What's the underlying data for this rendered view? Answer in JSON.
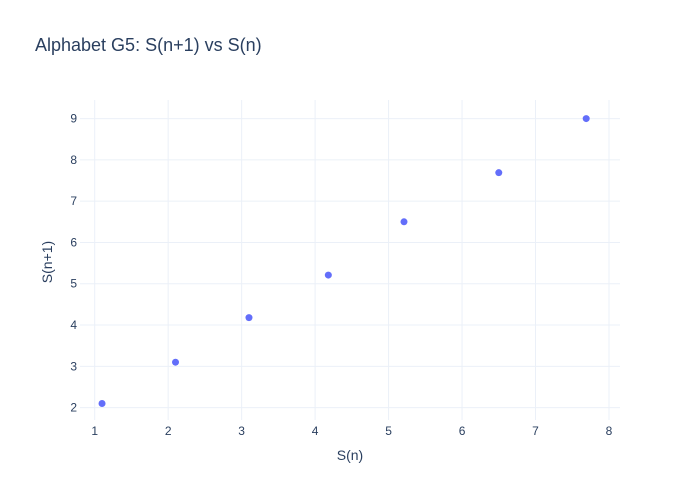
{
  "chart_data": {
    "type": "scatter",
    "title": "Alphabet G5: S(n+1) vs S(n)",
    "xlabel": "S(n)",
    "ylabel": "S(n+1)",
    "xlim": [
      0.8,
      8.15
    ],
    "ylim": [
      1.7,
      9.45
    ],
    "xticks": [
      1,
      2,
      3,
      4,
      5,
      6,
      7,
      8
    ],
    "yticks": [
      2,
      3,
      4,
      5,
      6,
      7,
      8,
      9
    ],
    "grid": true,
    "marker_color": "#636efa",
    "points": [
      {
        "x": 1.1,
        "y": 2.1
      },
      {
        "x": 2.1,
        "y": 3.1
      },
      {
        "x": 3.1,
        "y": 4.18
      },
      {
        "x": 4.18,
        "y": 5.21
      },
      {
        "x": 5.21,
        "y": 6.5
      },
      {
        "x": 6.5,
        "y": 7.69
      },
      {
        "x": 7.69,
        "y": 9.0
      }
    ]
  }
}
